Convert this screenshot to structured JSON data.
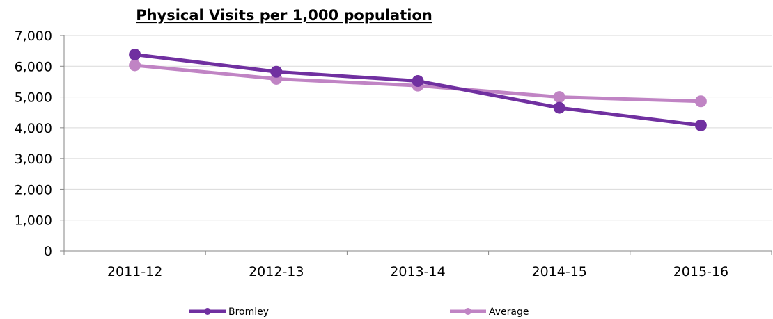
{
  "chart_data": {
    "type": "line",
    "title": "Physical Visits per 1,000 population",
    "xlabel": "",
    "ylabel": "",
    "categories": [
      "2011-12",
      "2012-13",
      "2013-14",
      "2014-15",
      "2015-16"
    ],
    "y_ticks": [
      "0",
      "1,000",
      "2,000",
      "3,000",
      "4,000",
      "5,000",
      "6,000",
      "7,000"
    ],
    "ylim": [
      0,
      7000
    ],
    "grid": true,
    "legend_position": "bottom",
    "series": [
      {
        "name": "Bromley",
        "color": "#7030a0",
        "values": [
          6380,
          5820,
          5520,
          4650,
          4080
        ]
      },
      {
        "name": "Average",
        "color": "#c084c4",
        "values": [
          6030,
          5590,
          5370,
          5000,
          4860
        ]
      }
    ]
  }
}
